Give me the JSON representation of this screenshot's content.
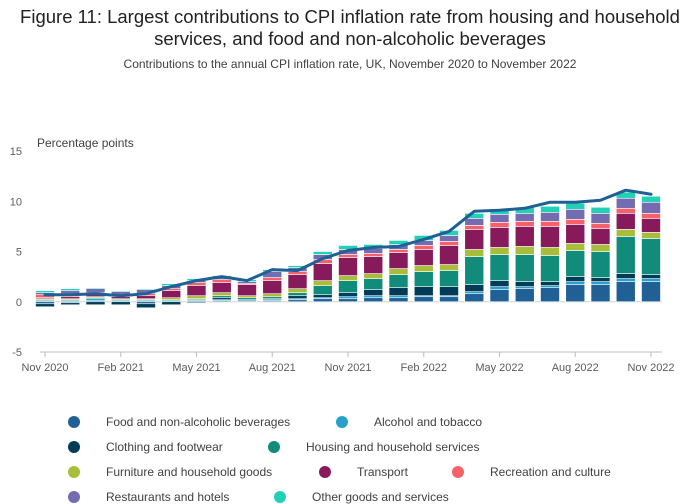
{
  "title": "Figure 11: Largest contributions to CPI inflation rate from housing and household services, and food and non-alcoholic beverages",
  "subtitle": "Contributions to the annual CPI inflation rate, UK, November 2020 to November 2022",
  "chart_data": {
    "type": "bar",
    "stacked": true,
    "ylabel": "Percentage points",
    "ylim": [
      -5,
      15
    ],
    "yticks": [
      15,
      10,
      5,
      0,
      -5
    ],
    "xticks": [
      "Nov 2020",
      "Feb 2021",
      "May 2021",
      "Aug 2021",
      "Nov 2021",
      "Feb 2022",
      "May 2022",
      "Aug 2022",
      "Nov 2022"
    ],
    "categories": [
      "Nov 2020",
      "Dec 2020",
      "Jan 2021",
      "Feb 2021",
      "Mar 2021",
      "Apr 2021",
      "May 2021",
      "Jun 2021",
      "Jul 2021",
      "Aug 2021",
      "Sep 2021",
      "Oct 2021",
      "Nov 2021",
      "Dec 2021",
      "Jan 2022",
      "Feb 2022",
      "Mar 2022",
      "Apr 2022",
      "May 2022",
      "Jun 2022",
      "Jul 2022",
      "Aug 2022",
      "Sep 2022",
      "Oct 2022",
      "Nov 2022"
    ],
    "series": [
      {
        "name": "Food and non-alcoholic beverages",
        "color": "#206095",
        "values": [
          -0.2,
          -0.1,
          0.1,
          0,
          -0.2,
          0,
          0.1,
          0.1,
          0,
          0.1,
          0.2,
          0.3,
          0.3,
          0.4,
          0.4,
          0.5,
          0.5,
          0.8,
          1.2,
          1.3,
          1.4,
          1.7,
          1.7,
          2.0,
          2.0
        ]
      },
      {
        "name": "Alcohol and tobacco",
        "color": "#27a0cc",
        "values": [
          0.1,
          0.1,
          0.2,
          0.1,
          0.1,
          0.1,
          0.1,
          0.1,
          0.1,
          0.1,
          0.1,
          0.1,
          0.2,
          0.2,
          0.2,
          0.1,
          0.1,
          0.2,
          0.3,
          0.2,
          0.2,
          0.3,
          0.3,
          0.3,
          0.3
        ]
      },
      {
        "name": "Clothing and footwear",
        "color": "#003c57",
        "values": [
          -0.3,
          -0.2,
          -0.3,
          -0.3,
          -0.4,
          -0.3,
          -0.1,
          0.2,
          0.1,
          0.1,
          0.3,
          0.3,
          0.4,
          0.6,
          0.8,
          0.9,
          0.9,
          0.7,
          0.6,
          0.5,
          0.4,
          0.5,
          0.4,
          0.5,
          0.4
        ]
      },
      {
        "name": "Housing and household services",
        "color": "#118c7b",
        "values": [
          0.1,
          0.1,
          0.1,
          0.1,
          0.1,
          0.1,
          0.1,
          0.2,
          0.2,
          0.2,
          0.3,
          0.9,
          1.2,
          1.1,
          1.3,
          1.5,
          1.6,
          2.8,
          2.6,
          2.7,
          2.6,
          2.6,
          2.6,
          3.7,
          3.6
        ]
      },
      {
        "name": "Furniture and household goods",
        "color": "#a8bd3a",
        "values": [
          0.1,
          0.1,
          0.1,
          0.1,
          0.1,
          0.2,
          0.3,
          0.3,
          0.2,
          0.3,
          0.4,
          0.5,
          0.5,
          0.5,
          0.6,
          0.6,
          0.6,
          0.7,
          0.7,
          0.8,
          0.8,
          0.7,
          0.7,
          0.7,
          0.6
        ]
      },
      {
        "name": "Transport",
        "color": "#871a5b",
        "values": [
          0.1,
          0.2,
          0.2,
          0.2,
          0.3,
          0.7,
          1.0,
          1.0,
          1.1,
          1.3,
          1.4,
          1.7,
          1.8,
          1.7,
          1.6,
          1.6,
          1.9,
          2.0,
          2.0,
          2.0,
          2.1,
          1.9,
          1.6,
          1.6,
          1.4
        ]
      },
      {
        "name": "Recreation and culture",
        "color": "#f66068",
        "values": [
          0.3,
          0.3,
          0.2,
          0.2,
          0.2,
          0.2,
          0.3,
          0.3,
          0.1,
          0.3,
          0.3,
          0.4,
          0.3,
          0.3,
          0.3,
          0.4,
          0.4,
          0.4,
          0.5,
          0.5,
          0.5,
          0.5,
          0.5,
          0.5,
          0.5
        ]
      },
      {
        "name": "Restaurants and hotels",
        "color": "#746cb1",
        "values": [
          0.2,
          0.3,
          0.4,
          0.3,
          0.4,
          0.3,
          0.2,
          0.2,
          0.2,
          0.6,
          0.4,
          0.5,
          0.5,
          0.5,
          0.5,
          0.5,
          0.6,
          0.7,
          0.8,
          0.8,
          0.9,
          1.0,
          1.0,
          1.0,
          1.1
        ]
      },
      {
        "name": "Other goods and services",
        "color": "#22d0b6",
        "values": [
          0.2,
          0.2,
          0.1,
          0.1,
          0.1,
          0.2,
          0.2,
          0.2,
          0.2,
          0.2,
          0.2,
          0.3,
          0.4,
          0.4,
          0.4,
          0.5,
          0.5,
          0.5,
          0.5,
          0.6,
          0.6,
          0.6,
          0.6,
          0.6,
          0.6
        ]
      }
    ],
    "total": {
      "color": "#206095",
      "values": [
        0.7,
        0.7,
        0.8,
        0.6,
        0.8,
        1.5,
        2.1,
        2.5,
        2.1,
        3.2,
        3.1,
        4.3,
        5.1,
        5.4,
        5.5,
        6.2,
        7.0,
        9.0,
        9.1,
        9.3,
        9.9,
        9.9,
        10.1,
        11.1,
        10.7
      ]
    },
    "legend_placement": "bottom",
    "grid": false
  }
}
